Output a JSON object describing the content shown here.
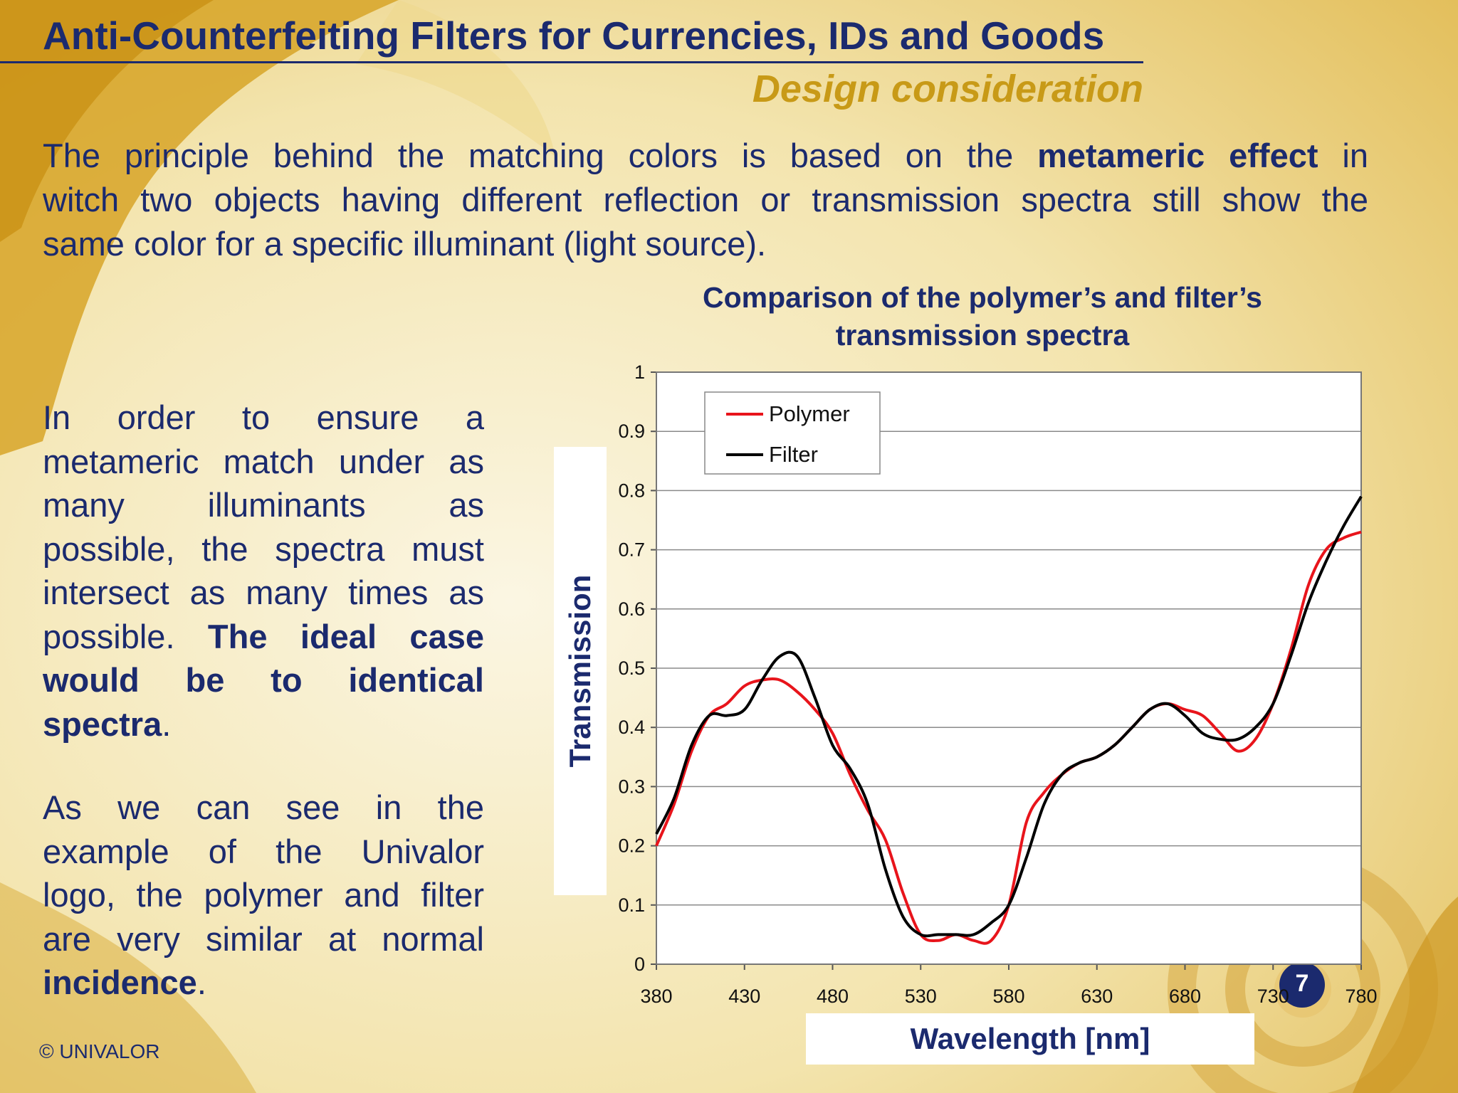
{
  "slide": {
    "title": "Anti-Counterfeiting Filters for Currencies, IDs and Goods",
    "subtitle": "Design consideration",
    "intro": {
      "lines": [
        [
          {
            "t": "The principle behind the matching colors is based on the "
          },
          {
            "t": "metameric effect",
            "b": true
          },
          {
            "t": " in"
          }
        ],
        [
          {
            "t": "witch two objects having different reflection or transmission spectra still show the"
          }
        ],
        [
          {
            "t": "same color for a specific illuminant (light source)."
          }
        ]
      ]
    },
    "paragraph1": {
      "lines": [
        [
          {
            "t": "In order to ensure a"
          }
        ],
        [
          {
            "t": "metameric match under as"
          }
        ],
        [
          {
            "t": "many illuminants as"
          }
        ],
        [
          {
            "t": "possible, the spectra must"
          }
        ],
        [
          {
            "t": "intersect as many times as"
          }
        ],
        [
          {
            "t": "possible.  "
          },
          {
            "t": "The ideal case",
            "b": true
          }
        ],
        [
          {
            "t": "would be to identical",
            "b": true
          }
        ],
        [
          {
            "t": "spectra",
            "b": true
          },
          {
            "t": "."
          }
        ]
      ]
    },
    "paragraph2": {
      "lines": [
        [
          {
            "t": "As we can see in the"
          }
        ],
        [
          {
            "t": "example of the Univalor"
          }
        ],
        [
          {
            "t": "logo, the polymer and filter"
          }
        ],
        [
          {
            "t": "are very similar at normal"
          }
        ],
        [
          {
            "t": "incidence",
            "b": true
          },
          {
            "t": "."
          }
        ]
      ]
    },
    "page_number": "7",
    "copyright": "© UNIVALOR"
  },
  "chart_data": {
    "type": "line",
    "title": "Comparison of the polymer’s and filter’s transmission spectra",
    "title_lines": [
      "Comparison of the polymer’s and filter’s",
      "transmission spectra"
    ],
    "xlabel": "Wavelength [nm]",
    "ylabel": "Transmission",
    "xlim": [
      380,
      780
    ],
    "ylim": [
      0,
      1
    ],
    "x_ticks": [
      380,
      430,
      480,
      530,
      580,
      630,
      680,
      730,
      780
    ],
    "y_ticks": [
      0,
      0.1,
      0.2,
      0.3,
      0.4,
      0.5,
      0.6,
      0.7,
      0.8,
      0.9,
      1
    ],
    "y_tick_labels": [
      "0",
      "0.1",
      "0.2",
      "0.3",
      "0.4",
      "0.5",
      "0.6",
      "0.7",
      "0.8",
      "0.9",
      "1"
    ],
    "grid": "horizontal",
    "legend_position": "top-left",
    "series": [
      {
        "name": "Polymer",
        "color": "#e8141b",
        "x": [
          380,
          390,
          400,
          410,
          420,
          430,
          440,
          450,
          460,
          470,
          480,
          490,
          500,
          510,
          520,
          530,
          540,
          550,
          560,
          570,
          580,
          590,
          600,
          610,
          620,
          630,
          640,
          650,
          660,
          670,
          680,
          690,
          700,
          710,
          720,
          730,
          740,
          750,
          760,
          770,
          780
        ],
        "y": [
          0.2,
          0.27,
          0.36,
          0.42,
          0.44,
          0.47,
          0.48,
          0.48,
          0.46,
          0.43,
          0.39,
          0.32,
          0.26,
          0.21,
          0.12,
          0.05,
          0.04,
          0.05,
          0.04,
          0.04,
          0.1,
          0.24,
          0.29,
          0.32,
          0.34,
          0.35,
          0.37,
          0.4,
          0.43,
          0.44,
          0.43,
          0.42,
          0.39,
          0.36,
          0.38,
          0.44,
          0.53,
          0.64,
          0.7,
          0.72,
          0.73
        ]
      },
      {
        "name": "Filter",
        "color": "#000000",
        "x": [
          380,
          390,
          400,
          410,
          420,
          430,
          440,
          450,
          460,
          470,
          480,
          490,
          500,
          510,
          520,
          530,
          540,
          550,
          560,
          570,
          580,
          590,
          600,
          610,
          620,
          630,
          640,
          650,
          660,
          670,
          680,
          690,
          700,
          710,
          720,
          730,
          740,
          750,
          760,
          770,
          780
        ],
        "y": [
          0.22,
          0.28,
          0.37,
          0.42,
          0.42,
          0.43,
          0.48,
          0.52,
          0.52,
          0.45,
          0.37,
          0.33,
          0.27,
          0.16,
          0.08,
          0.05,
          0.05,
          0.05,
          0.05,
          0.07,
          0.1,
          0.18,
          0.27,
          0.32,
          0.34,
          0.35,
          0.37,
          0.4,
          0.43,
          0.44,
          0.42,
          0.39,
          0.38,
          0.38,
          0.4,
          0.44,
          0.52,
          0.61,
          0.68,
          0.74,
          0.79
        ]
      }
    ]
  },
  "colors": {
    "navy": "#1b2a6e",
    "gold": "#c89a17",
    "polymer_red": "#e8141b",
    "filter_black": "#000000"
  }
}
